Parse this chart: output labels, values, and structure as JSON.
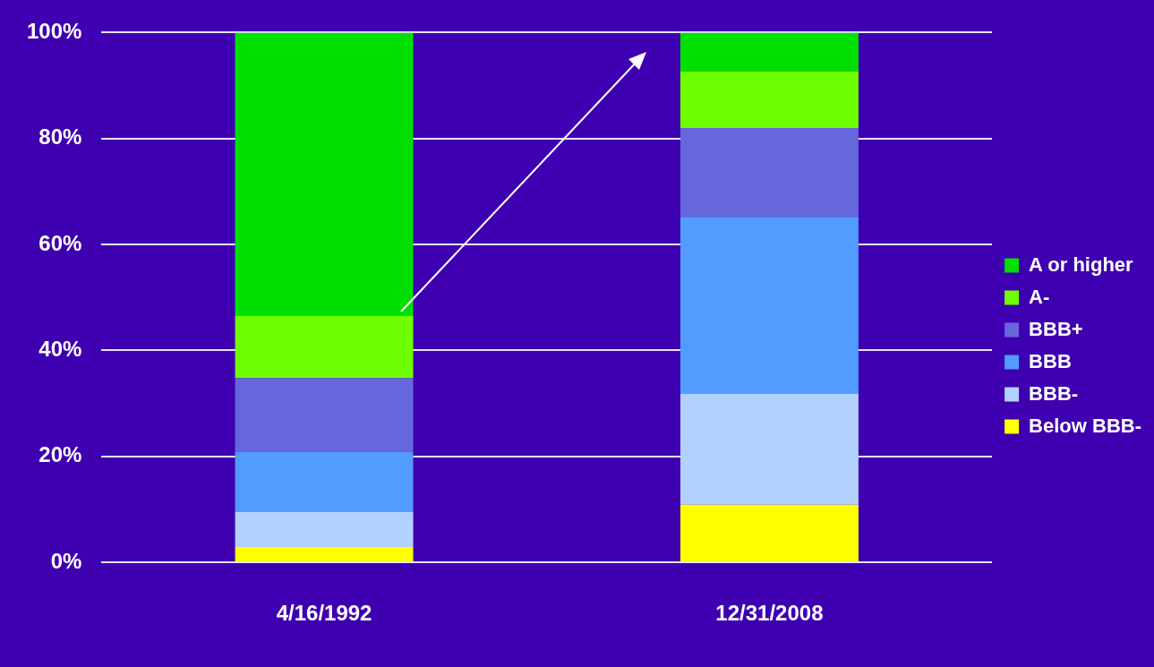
{
  "chart_data": {
    "type": "bar",
    "stacked": true,
    "categories": [
      "4/16/1992",
      "12/31/2008"
    ],
    "series": [
      {
        "name": "Below BBB-",
        "color": "#ffff00",
        "values": [
          2.9,
          10.9
        ]
      },
      {
        "name": "BBB-",
        "color": "#b3d1ff",
        "values": [
          6.7,
          21.0
        ]
      },
      {
        "name": "BBB",
        "color": "#529bff",
        "values": [
          11.3,
          33.3
        ]
      },
      {
        "name": "BBB+",
        "color": "#6666dd",
        "values": [
          13.9,
          16.8
        ]
      },
      {
        "name": "A-",
        "color": "#6eff00",
        "values": [
          11.8,
          10.7
        ]
      },
      {
        "name": "A or higher",
        "color": "#00e000",
        "values": [
          53.4,
          7.3
        ]
      }
    ],
    "ylim": [
      0,
      100
    ],
    "yticks": [
      {
        "value": 0,
        "label": "0%"
      },
      {
        "value": 20,
        "label": "20%"
      },
      {
        "value": 40,
        "label": "40%"
      },
      {
        "value": 60,
        "label": "60%"
      },
      {
        "value": 80,
        "label": "80%"
      },
      {
        "value": 100,
        "label": "100%"
      }
    ],
    "grid": "y",
    "legend": "right"
  }
}
